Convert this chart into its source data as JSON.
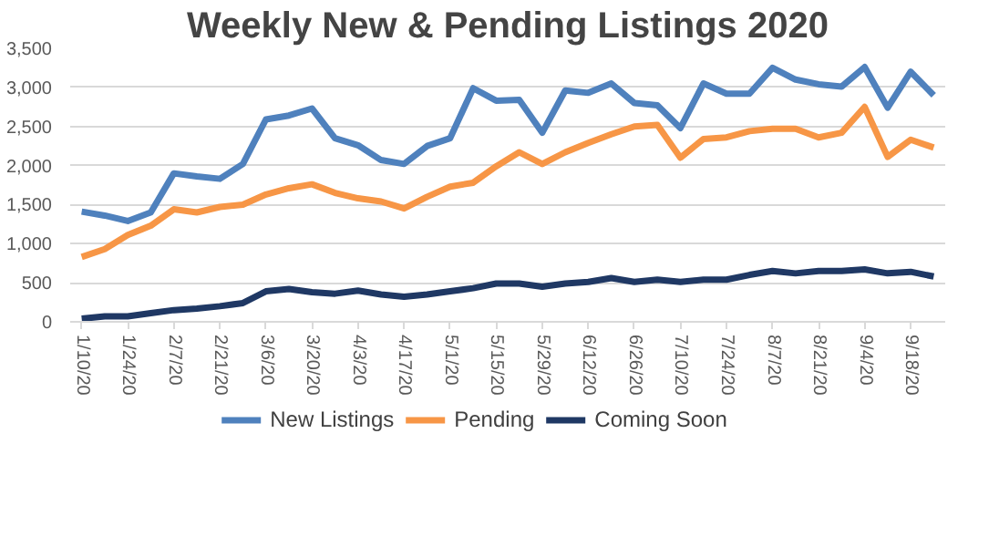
{
  "chart_data": {
    "type": "line",
    "title": "Weekly New & Pending Listings 2020",
    "categories": [
      "1/10/20",
      null,
      "1/24/20",
      null,
      "2/7/20",
      null,
      "2/21/20",
      null,
      "3/6/20",
      null,
      "3/20/20",
      null,
      "4/3/20",
      null,
      "4/17/20",
      null,
      "5/1/20",
      null,
      "5/15/20",
      null,
      "5/29/20",
      null,
      "6/12/20",
      null,
      "6/26/20",
      null,
      "7/10/20",
      null,
      "7/24/20",
      null,
      "8/7/20",
      null,
      "8/21/20",
      null,
      "9/4/20",
      null,
      "9/18/20",
      null
    ],
    "series": [
      {
        "name": "New Listings",
        "color": "#4f81bd",
        "values": [
          1410,
          1360,
          1290,
          1400,
          1900,
          1860,
          1830,
          2020,
          2590,
          2640,
          2730,
          2350,
          2260,
          2070,
          2020,
          2250,
          2350,
          2990,
          2830,
          2840,
          2420,
          2960,
          2930,
          3050,
          2800,
          2770,
          2480,
          3050,
          2920,
          2920,
          3250,
          3100,
          3040,
          3010,
          3260,
          2740,
          3200,
          2900
        ]
      },
      {
        "name": "Pending",
        "color": "#f79646",
        "values": [
          830,
          930,
          1110,
          1230,
          1440,
          1400,
          1470,
          1500,
          1630,
          1710,
          1760,
          1650,
          1580,
          1540,
          1450,
          1600,
          1730,
          1780,
          1990,
          2170,
          2020,
          2170,
          2290,
          2400,
          2500,
          2520,
          2100,
          2340,
          2360,
          2440,
          2470,
          2470,
          2360,
          2420,
          2750,
          2110,
          2330,
          2230
        ]
      },
      {
        "name": "Coming Soon",
        "color": "#1f3864",
        "values": [
          40,
          70,
          70,
          110,
          150,
          170,
          200,
          240,
          390,
          420,
          380,
          360,
          400,
          350,
          320,
          350,
          390,
          430,
          490,
          490,
          450,
          490,
          510,
          560,
          510,
          540,
          510,
          540,
          540,
          600,
          650,
          620,
          650,
          650,
          670,
          620,
          640,
          580
        ]
      }
    ],
    "ylim": [
      0,
      3500
    ],
    "yticks": [
      0,
      500,
      {
        "value": 1000,
        "label": "1,000"
      },
      {
        "value": 1500,
        "label": "1,500"
      },
      {
        "value": 2000,
        "label": "2,000"
      },
      {
        "value": 2500,
        "label": "2,500"
      },
      {
        "value": 3000,
        "label": "3,000"
      },
      {
        "value": 3500,
        "label": "3,500"
      }
    ],
    "grid": "y",
    "legend": "bottom",
    "marker": "none",
    "line_style": "solid"
  }
}
